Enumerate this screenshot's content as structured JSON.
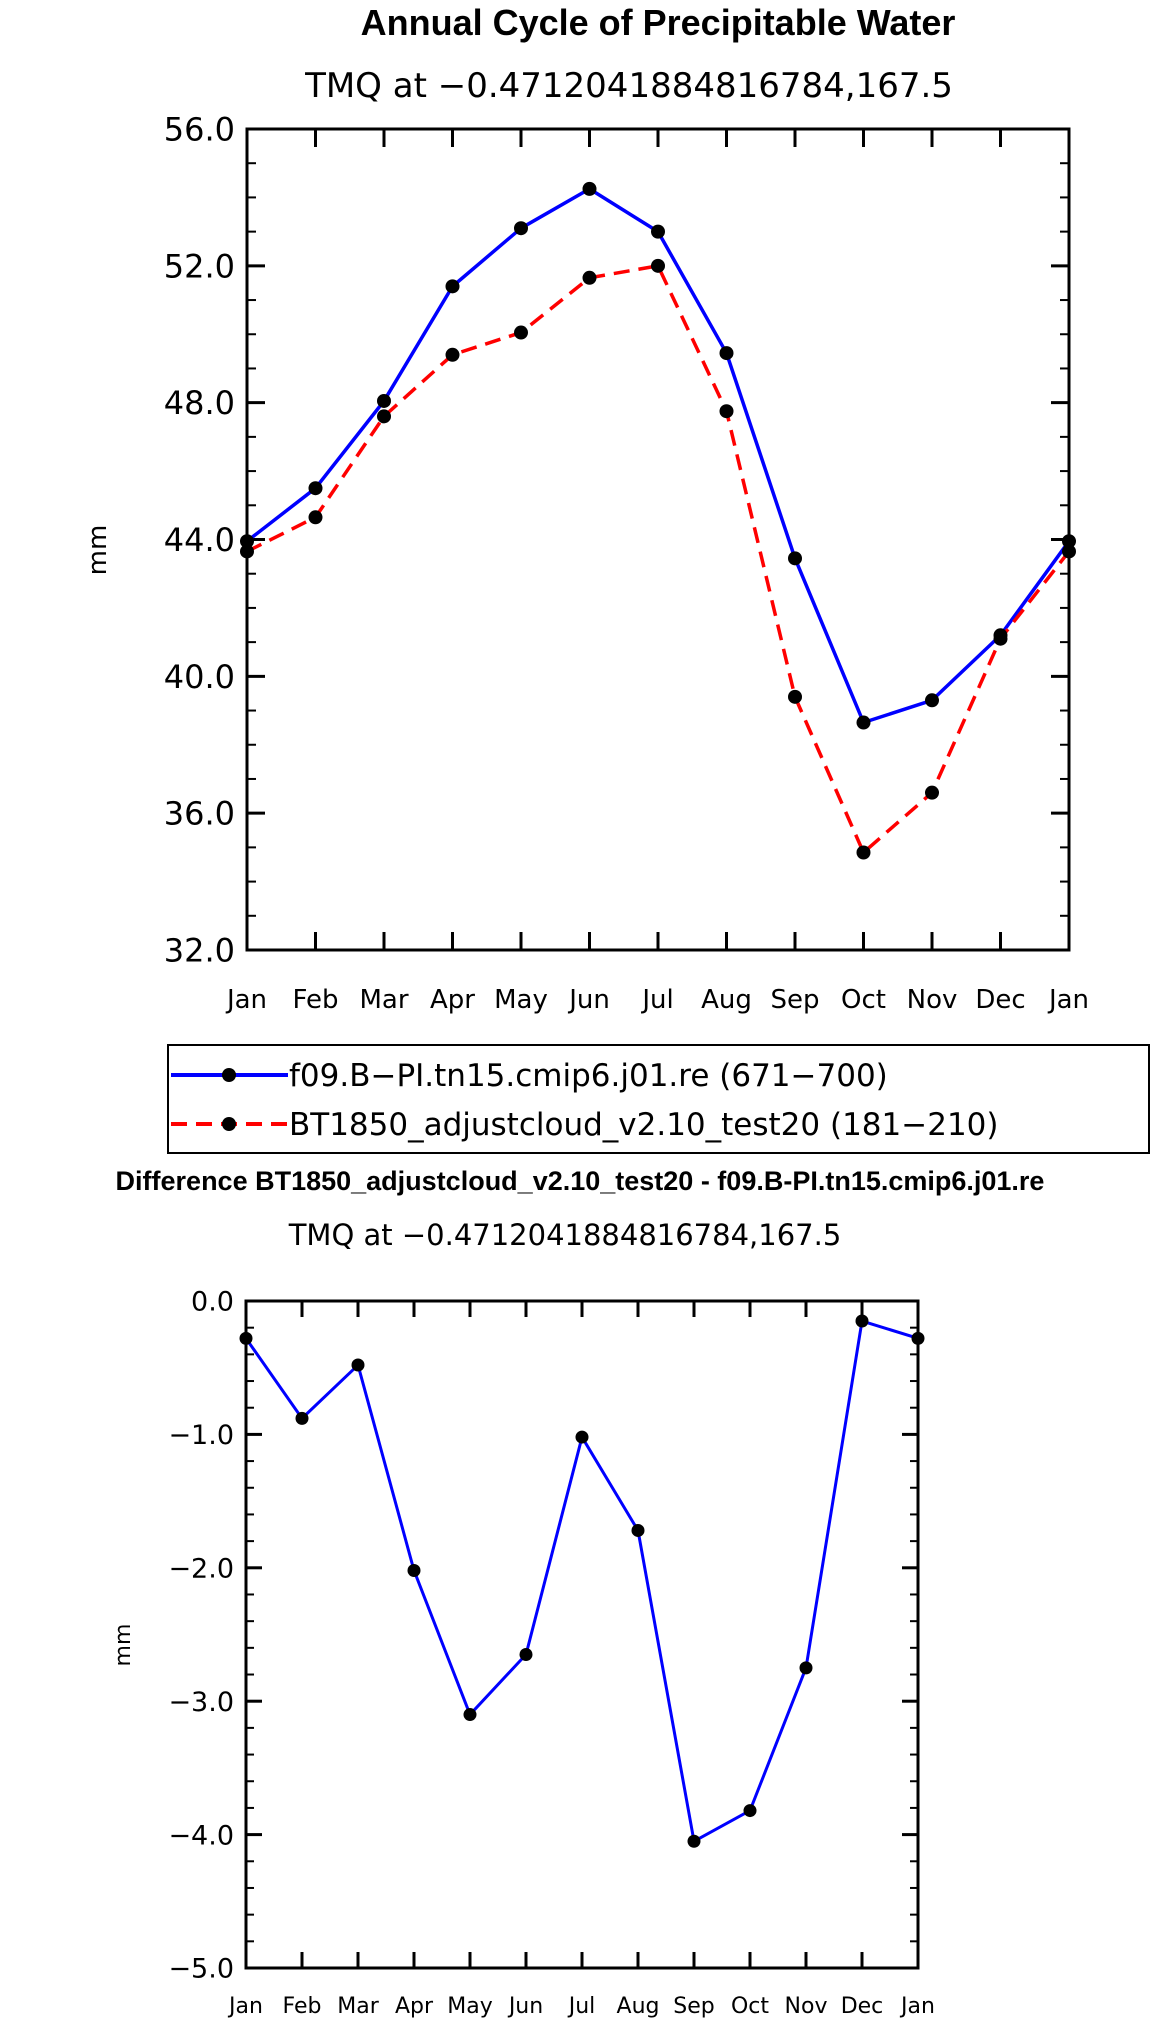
{
  "chart_data": [
    {
      "type": "line",
      "title": "Annual Cycle of Precipitable Water",
      "subtitle": "TMQ at −0.4712041884816784,167.5",
      "xlabel": "",
      "ylabel": "mm",
      "categories": [
        "Jan",
        "Feb",
        "Mar",
        "Apr",
        "May",
        "Jun",
        "Jul",
        "Aug",
        "Sep",
        "Oct",
        "Nov",
        "Dec",
        "Jan"
      ],
      "ylim": [
        32.0,
        56.0
      ],
      "yticks": [
        "32.0",
        "36.0",
        "40.0",
        "44.0",
        "48.0",
        "52.0",
        "56.0"
      ],
      "series": [
        {
          "name": "f09.B−PI.tn15.cmip6.j01.re",
          "legend_label": "f09.B−PI.tn15.cmip6.j01.re (671−700)",
          "color": "#0000ff",
          "dash": "solid",
          "values": [
            43.95,
            45.5,
            48.05,
            51.4,
            53.1,
            54.25,
            53.0,
            49.45,
            43.45,
            38.65,
            39.3,
            41.2,
            43.95
          ]
        },
        {
          "name": "BT1850_adjustcloud_v2.10_test20",
          "legend_label": "BT1850_adjustcloud_v2.10_test20 (181−210)",
          "color": "#ff0000",
          "dash": "dashed",
          "values": [
            43.65,
            44.65,
            47.6,
            49.4,
            50.05,
            51.65,
            52.0,
            47.75,
            39.4,
            34.85,
            36.6,
            41.1,
            43.65
          ]
        }
      ]
    },
    {
      "type": "line",
      "title": "Difference BT1850_adjustcloud_v2.10_test20 - f09.B-PI.tn15.cmip6.j01.re",
      "subtitle": "TMQ at −0.4712041884816784,167.5",
      "xlabel": "",
      "ylabel": "mm",
      "categories": [
        "Jan",
        "Feb",
        "Mar",
        "Apr",
        "May",
        "Jun",
        "Jul",
        "Aug",
        "Sep",
        "Oct",
        "Nov",
        "Dec",
        "Jan"
      ],
      "ylim": [
        -5.0,
        0.0
      ],
      "yticks": [
        "−5.0",
        "−4.0",
        "−3.0",
        "−2.0",
        "−1.0",
        "0.0"
      ],
      "series": [
        {
          "name": "Difference",
          "color": "#0000ff",
          "dash": "solid",
          "values": [
            -0.28,
            -0.88,
            -0.48,
            -2.02,
            -3.1,
            -2.65,
            -1.02,
            -1.72,
            -4.05,
            -3.82,
            -2.75,
            -0.15,
            -0.28
          ]
        }
      ]
    }
  ]
}
